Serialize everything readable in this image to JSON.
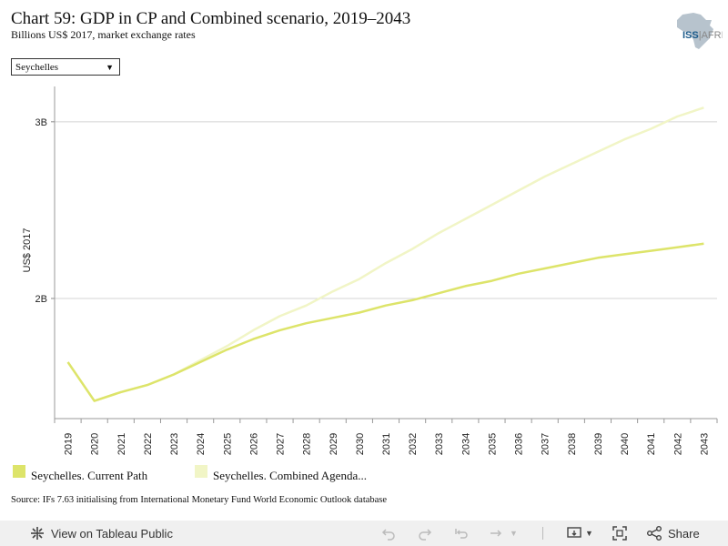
{
  "header": {
    "title": "Chart 59: GDP in CP and Combined scenario, 2019–2043",
    "subtitle": "Billions US$ 2017, market exchange rates",
    "logo_text": "ISS|AFRICA"
  },
  "filter": {
    "selected": "Seychelles"
  },
  "chart_data": {
    "type": "line",
    "x": [
      2019,
      2020,
      2021,
      2022,
      2023,
      2024,
      2025,
      2026,
      2027,
      2028,
      2029,
      2030,
      2031,
      2032,
      2033,
      2034,
      2035,
      2036,
      2037,
      2038,
      2039,
      2040,
      2041,
      2042,
      2043
    ],
    "series": [
      {
        "name": "Seychelles. Current Path",
        "color": "#dde46a",
        "values": [
          1.64,
          1.42,
          1.47,
          1.51,
          1.57,
          1.64,
          1.71,
          1.77,
          1.82,
          1.86,
          1.89,
          1.92,
          1.96,
          1.99,
          2.03,
          2.07,
          2.1,
          2.14,
          2.17,
          2.2,
          2.23,
          2.25,
          2.27,
          2.29,
          2.31
        ]
      },
      {
        "name": "Seychelles. Combined Agenda...",
        "color": "#f1f5c6",
        "values": [
          1.64,
          1.42,
          1.47,
          1.51,
          1.57,
          1.65,
          1.73,
          1.82,
          1.9,
          1.96,
          2.04,
          2.11,
          2.2,
          2.28,
          2.37,
          2.45,
          2.53,
          2.61,
          2.69,
          2.76,
          2.83,
          2.9,
          2.96,
          3.03,
          3.08
        ]
      }
    ],
    "ylabel": "US$ 2017",
    "xlabel": "",
    "y_ticks": [
      2,
      3
    ],
    "y_tick_labels": [
      "2B",
      "3B"
    ],
    "ylim": [
      1.32,
      3.2
    ],
    "grid": true,
    "legend_position": "bottom"
  },
  "source": "Source: IFs 7.63 initialising from International Monetary Fund World Economic Outlook database",
  "toolbar": {
    "view_label": "View on Tableau Public",
    "share_label": "Share"
  },
  "icons": {
    "tableau": "tableau-icon",
    "undo": "undo-icon",
    "redo": "redo-icon",
    "revert": "revert-icon",
    "refresh": "refresh-icon",
    "download": "download-icon",
    "fullscreen": "fullscreen-icon",
    "share": "share-icon"
  }
}
